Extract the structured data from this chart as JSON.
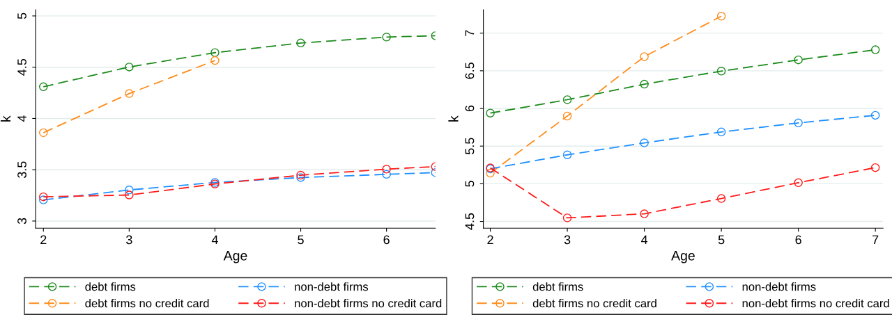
{
  "chart_data": [
    {
      "type": "line",
      "xlabel": "Age",
      "ylabel": "k",
      "xlim": [
        1.91,
        6.57
      ],
      "ylim": [
        2.93,
        5.06
      ],
      "xticks": [
        2,
        3,
        4,
        5,
        6
      ],
      "yticks": [
        3,
        3.5,
        4,
        4.5,
        5
      ],
      "grid": "y",
      "legend": "bottom",
      "marker": "circle",
      "line_style": "dashed",
      "series": [
        {
          "name": "debt firms",
          "color": "#1a8a1a",
          "x": [
            2,
            3,
            4,
            5,
            6,
            6.57
          ],
          "values": [
            4.309,
            4.502,
            4.642,
            4.736,
            4.794,
            4.807
          ]
        },
        {
          "name": "debt firms no credit card",
          "color": "#ff8c1a",
          "x": [
            2,
            3,
            4
          ],
          "values": [
            3.861,
            4.243,
            4.565
          ]
        },
        {
          "name": "non-debt firms",
          "color": "#1e90ff",
          "x": [
            2,
            3,
            4,
            5,
            6,
            6.57
          ],
          "values": [
            3.206,
            3.303,
            3.376,
            3.424,
            3.455,
            3.473
          ]
        },
        {
          "name": "non-debt firms no credit card",
          "color": "#ff1a1a",
          "x": [
            2,
            3,
            4,
            5,
            6,
            6.57
          ],
          "values": [
            3.236,
            3.254,
            3.361,
            3.447,
            3.506,
            3.531
          ]
        }
      ]
    },
    {
      "type": "line",
      "xlabel": "Age",
      "ylabel": "k",
      "xlim": [
        1.91,
        7.1
      ],
      "ylim": [
        4.41,
        7.31
      ],
      "xticks": [
        2,
        3,
        4,
        5,
        6,
        7
      ],
      "yticks": [
        4.5,
        5,
        5.5,
        6,
        6.5,
        7
      ],
      "grid": "y",
      "legend": "bottom",
      "marker": "circle",
      "line_style": "dashed",
      "series": [
        {
          "name": "debt firms",
          "color": "#1a8a1a",
          "x": [
            2,
            3,
            4,
            5,
            6,
            7
          ],
          "values": [
            5.938,
            6.116,
            6.322,
            6.496,
            6.645,
            6.779
          ]
        },
        {
          "name": "debt firms no credit card",
          "color": "#ff8c1a",
          "x": [
            2,
            3,
            4,
            5
          ],
          "values": [
            5.141,
            5.899,
            6.688,
            7.225
          ]
        },
        {
          "name": "non-debt firms",
          "color": "#1e90ff",
          "x": [
            2,
            3,
            4,
            5,
            6,
            7
          ],
          "values": [
            5.199,
            5.384,
            5.543,
            5.688,
            5.808,
            5.909
          ]
        },
        {
          "name": "non-debt firms no credit card",
          "color": "#ff1a1a",
          "x": [
            2,
            3,
            4,
            5,
            6,
            7
          ],
          "values": [
            5.21,
            4.547,
            4.601,
            4.804,
            5.014,
            5.214
          ]
        }
      ]
    }
  ]
}
